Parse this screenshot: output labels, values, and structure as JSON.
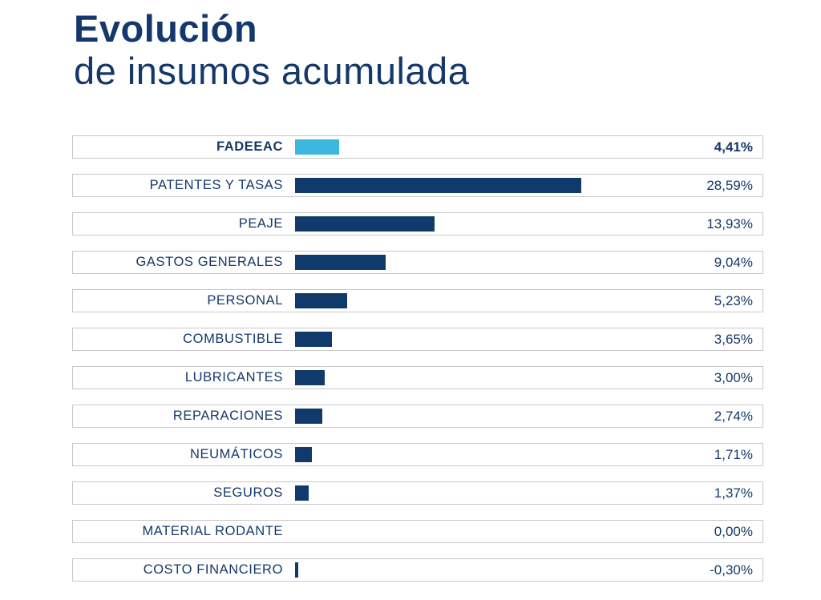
{
  "title": {
    "line1": "Evolución",
    "line2": "de insumos acumulada"
  },
  "colors": {
    "title_navy": "#14386B",
    "bar_navy": "#0F3A6B",
    "bar_cyan": "#3CB6DF",
    "row_border": "#C7C7CB",
    "background": "#FFFFFF"
  },
  "chart_data": {
    "type": "bar",
    "orientation": "horizontal",
    "title": "Evolución de insumos acumulada",
    "xlabel": "",
    "ylabel": "",
    "xlim": [
      0,
      30
    ],
    "grid": false,
    "legend": false,
    "highlighted_category": "FADEEAC",
    "categories": [
      "FADEEAC",
      "PATENTES Y TASAS",
      "PEAJE",
      "GASTOS GENERALES",
      "PERSONAL",
      "COMBUSTIBLE",
      "LUBRICANTES",
      "REPARACIONES",
      "NEUMÁTICOS",
      "SEGUROS",
      "MATERIAL RODANTE",
      "COSTO FINANCIERO"
    ],
    "values": [
      4.41,
      28.59,
      13.93,
      9.04,
      5.23,
      3.65,
      3.0,
      2.74,
      1.71,
      1.37,
      0.0,
      -0.3
    ],
    "value_labels": [
      "4,41%",
      "28,59%",
      "13,93%",
      "9,04%",
      "5,23%",
      "3,65%",
      "3,00%",
      "2,74%",
      "1,71%",
      "1,37%",
      "0,00%",
      "-0,30%"
    ]
  }
}
